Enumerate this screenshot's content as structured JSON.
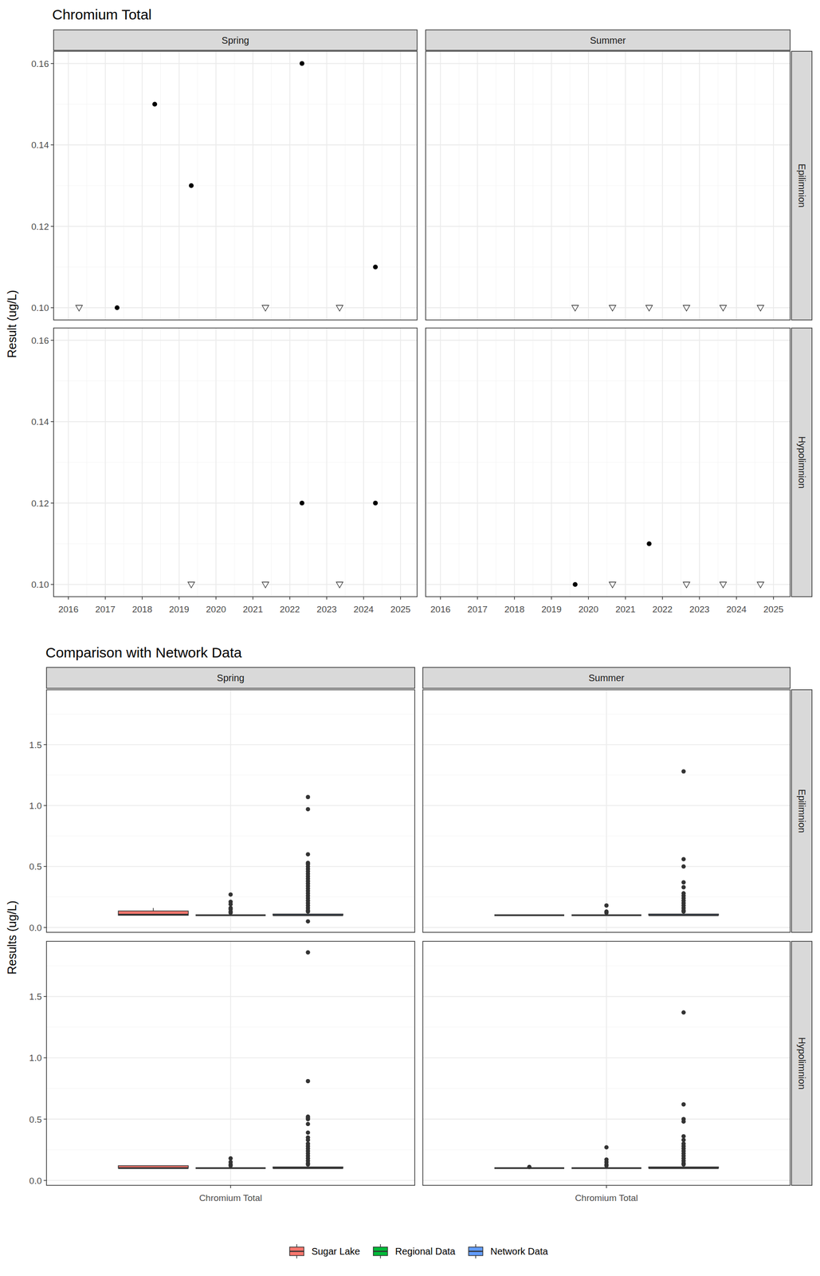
{
  "chart_data": [
    {
      "type": "scatter",
      "title": "Chromium Total",
      "y_label": "Result (ug/L)",
      "columns": [
        "Spring",
        "Summer"
      ],
      "rows": [
        "Epilimnion",
        "Hypolimnion"
      ],
      "xlim": [
        2015.6,
        2025.45
      ],
      "xticks": [
        2016,
        2017,
        2018,
        2019,
        2020,
        2021,
        2022,
        2023,
        2024,
        2025
      ],
      "ylim": [
        0.097,
        0.163
      ],
      "yticks": [
        {
          "value": 0.1,
          "label": "0.10"
        },
        {
          "value": 0.12,
          "label": "0.12"
        },
        {
          "value": 0.14,
          "label": "0.14"
        },
        {
          "value": 0.16,
          "label": "0.16"
        }
      ],
      "grid": true,
      "panels": [
        {
          "series": [
            {
              "marker": "circle",
              "color": "#000000",
              "x": [
                2017.32,
                2018.34,
                2019.33,
                2022.33,
                2024.32
              ],
              "values": [
                0.1,
                0.15,
                0.13,
                0.16,
                0.11
              ]
            },
            {
              "marker": "triangle_down",
              "color": "#333333",
              "x": [
                2016.29,
                2021.34,
                2023.35
              ],
              "values": [
                0.1,
                0.1,
                0.1
              ]
            }
          ]
        },
        {
          "series": [
            {
              "marker": "circle",
              "color": "#000000",
              "x": [],
              "values": []
            },
            {
              "marker": "triangle_down",
              "color": "#333333",
              "x": [
                2019.64,
                2020.65,
                2021.64,
                2022.65,
                2023.64,
                2024.65
              ],
              "values": [
                0.1,
                0.1,
                0.1,
                0.1,
                0.1,
                0.1
              ]
            }
          ]
        },
        {
          "series": [
            {
              "marker": "circle",
              "color": "#000000",
              "x": [
                2022.33,
                2024.32
              ],
              "values": [
                0.12,
                0.12
              ]
            },
            {
              "marker": "triangle_down",
              "color": "#333333",
              "x": [
                2019.33,
                2021.34,
                2023.35
              ],
              "values": [
                0.1,
                0.1,
                0.1
              ]
            }
          ]
        },
        {
          "series": [
            {
              "marker": "circle",
              "color": "#000000",
              "x": [
                2019.64,
                2021.64
              ],
              "values": [
                0.1,
                0.11
              ]
            },
            {
              "marker": "triangle_down",
              "color": "#333333",
              "x": [
                2020.65,
                2022.65,
                2023.64,
                2024.65
              ],
              "values": [
                0.1,
                0.1,
                0.1,
                0.1
              ]
            }
          ]
        }
      ]
    },
    {
      "type": "box",
      "title": "Comparison with Network Data",
      "y_label": "Results (ug/L)",
      "columns": [
        "Spring",
        "Summer"
      ],
      "rows": [
        "Epilimnion",
        "Hypolimnion"
      ],
      "categories": [
        "Chromium Total"
      ],
      "ylim": [
        -0.04,
        1.95
      ],
      "yticks": [
        {
          "value": 0,
          "label": "0.0"
        },
        {
          "value": 0.5,
          "label": "0.5"
        },
        {
          "value": 1,
          "label": "1.0"
        },
        {
          "value": 1.5,
          "label": "1.5"
        }
      ],
      "grid": true,
      "legend": "bottom",
      "series": [
        {
          "name": "Sugar Lake",
          "color": "#F8766D",
          "boxes": [
            {
              "low": 0.1,
              "q1": 0.1,
              "median": 0.105,
              "q3": 0.135,
              "high": 0.16,
              "outliers": []
            },
            {
              "low": 0.1,
              "q1": 0.1,
              "median": 0.1,
              "q3": 0.1,
              "high": 0.1,
              "outliers": []
            },
            {
              "low": 0.1,
              "q1": 0.1,
              "median": 0.1,
              "q3": 0.12,
              "high": 0.12,
              "outliers": []
            },
            {
              "low": 0.1,
              "q1": 0.1,
              "median": 0.1,
              "q3": 0.1,
              "high": 0.1,
              "outliers": [
                0.11
              ]
            }
          ]
        },
        {
          "name": "Regional Data",
          "color": "#00BA38",
          "boxes": [
            {
              "low": 0.1,
              "q1": 0.1,
              "median": 0.1,
              "q3": 0.1,
              "high": 0.1,
              "outliers": [
                0.27,
                0.21,
                0.19,
                0.16,
                0.15,
                0.13,
                0.12
              ]
            },
            {
              "low": 0.1,
              "q1": 0.1,
              "median": 0.1,
              "q3": 0.1,
              "high": 0.1,
              "outliers": [
                0.18,
                0.13,
                0.12
              ]
            },
            {
              "low": 0.1,
              "q1": 0.1,
              "median": 0.1,
              "q3": 0.1,
              "high": 0.1,
              "outliers": [
                0.18,
                0.15,
                0.13,
                0.12
              ]
            },
            {
              "low": 0.1,
              "q1": 0.1,
              "median": 0.1,
              "q3": 0.1,
              "high": 0.1,
              "outliers": [
                0.27,
                0.17,
                0.15,
                0.13,
                0.12
              ]
            }
          ]
        },
        {
          "name": "Network Data",
          "color": "#619CFF",
          "boxes": [
            {
              "low": 0.1,
              "q1": 0.1,
              "median": 0.1,
              "q3": 0.11,
              "high": 0.12,
              "outliers": [
                1.07,
                0.97,
                0.6,
                0.53,
                0.52,
                0.5,
                0.48,
                0.46,
                0.44,
                0.42,
                0.4,
                0.38,
                0.36,
                0.34,
                0.32,
                0.3,
                0.28,
                0.26,
                0.24,
                0.22,
                0.2,
                0.18,
                0.16,
                0.14,
                0.13,
                0.05
              ]
            },
            {
              "low": 0.1,
              "q1": 0.1,
              "median": 0.1,
              "q3": 0.11,
              "high": 0.12,
              "outliers": [
                1.28,
                0.56,
                0.5,
                0.37,
                0.33,
                0.28,
                0.26,
                0.24,
                0.22,
                0.2,
                0.18,
                0.16,
                0.14,
                0.13
              ]
            },
            {
              "low": 0.1,
              "q1": 0.1,
              "median": 0.1,
              "q3": 0.11,
              "high": 0.12,
              "outliers": [
                1.86,
                0.81,
                0.52,
                0.51,
                0.5,
                0.46,
                0.39,
                0.35,
                0.33,
                0.3,
                0.28,
                0.26,
                0.24,
                0.22,
                0.2,
                0.18,
                0.16,
                0.14,
                0.13
              ]
            },
            {
              "low": 0.1,
              "q1": 0.1,
              "median": 0.1,
              "q3": 0.11,
              "high": 0.12,
              "outliers": [
                1.37,
                0.62,
                0.5,
                0.48,
                0.36,
                0.33,
                0.3,
                0.28,
                0.26,
                0.24,
                0.22,
                0.2,
                0.18,
                0.16,
                0.14,
                0.13
              ]
            }
          ]
        }
      ]
    }
  ]
}
